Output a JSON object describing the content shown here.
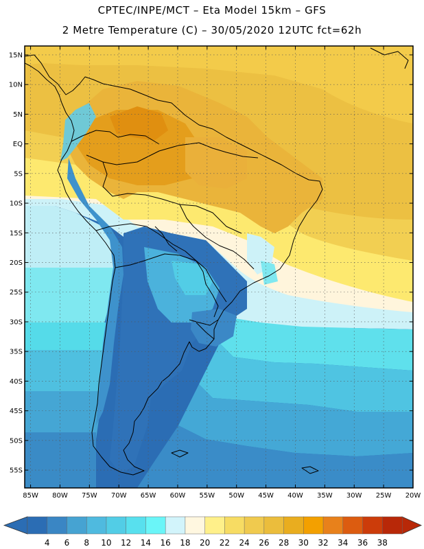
{
  "header": {
    "line1": "CPTEC/INPE/MCT –  Eta Model 15km – GFS",
    "line2": "2 Metre Temperature (C) – 30/05/2020 12UTC fct=62h"
  },
  "map": {
    "extent": {
      "lon_min": -86,
      "lon_max": -20,
      "lat_min": -58,
      "lat_max": 16.5
    },
    "lat_ticks": [
      {
        "value": 15,
        "label": "15N"
      },
      {
        "value": 10,
        "label": "10N"
      },
      {
        "value": 5,
        "label": "5N"
      },
      {
        "value": 0,
        "label": "EQ"
      },
      {
        "value": -5,
        "label": "5S"
      },
      {
        "value": -10,
        "label": "10S"
      },
      {
        "value": -15,
        "label": "15S"
      },
      {
        "value": -20,
        "label": "20S"
      },
      {
        "value": -25,
        "label": "25S"
      },
      {
        "value": -30,
        "label": "30S"
      },
      {
        "value": -35,
        "label": "35S"
      },
      {
        "value": -40,
        "label": "40S"
      },
      {
        "value": -45,
        "label": "45S"
      },
      {
        "value": -50,
        "label": "50S"
      },
      {
        "value": -55,
        "label": "55S"
      }
    ],
    "lon_ticks": [
      {
        "value": -85,
        "label": "85W"
      },
      {
        "value": -80,
        "label": "80W"
      },
      {
        "value": -75,
        "label": "75W"
      },
      {
        "value": -70,
        "label": "70W"
      },
      {
        "value": -65,
        "label": "65W"
      },
      {
        "value": -60,
        "label": "60W"
      },
      {
        "value": -55,
        "label": "55W"
      },
      {
        "value": -50,
        "label": "50W"
      },
      {
        "value": -45,
        "label": "45W"
      },
      {
        "value": -40,
        "label": "40W"
      },
      {
        "value": -35,
        "label": "35W"
      },
      {
        "value": -30,
        "label": "30W"
      },
      {
        "value": -25,
        "label": "25W"
      },
      {
        "value": -20,
        "label": "20W"
      }
    ]
  },
  "colorbar": {
    "labels": [
      "4",
      "6",
      "8",
      "10",
      "12",
      "14",
      "16",
      "18",
      "20",
      "22",
      "24",
      "26",
      "28",
      "30",
      "32",
      "34",
      "36",
      "38"
    ],
    "colors": [
      "#2b6db4",
      "#3a86c4",
      "#46a3d2",
      "#4fbadf",
      "#52cde6",
      "#58e0ee",
      "#6af5f8",
      "#d2f4fb",
      "#fff7e0",
      "#fff08a",
      "#f7dc63",
      "#f0ca4e",
      "#ebbd3c",
      "#e9ad1f",
      "#f3a000",
      "#e8811b",
      "#dc5c10",
      "#cc3c0a",
      "#b82808"
    ],
    "left_arrow_color": "#2b6db4",
    "right_arrow_color": "#b82808"
  }
}
